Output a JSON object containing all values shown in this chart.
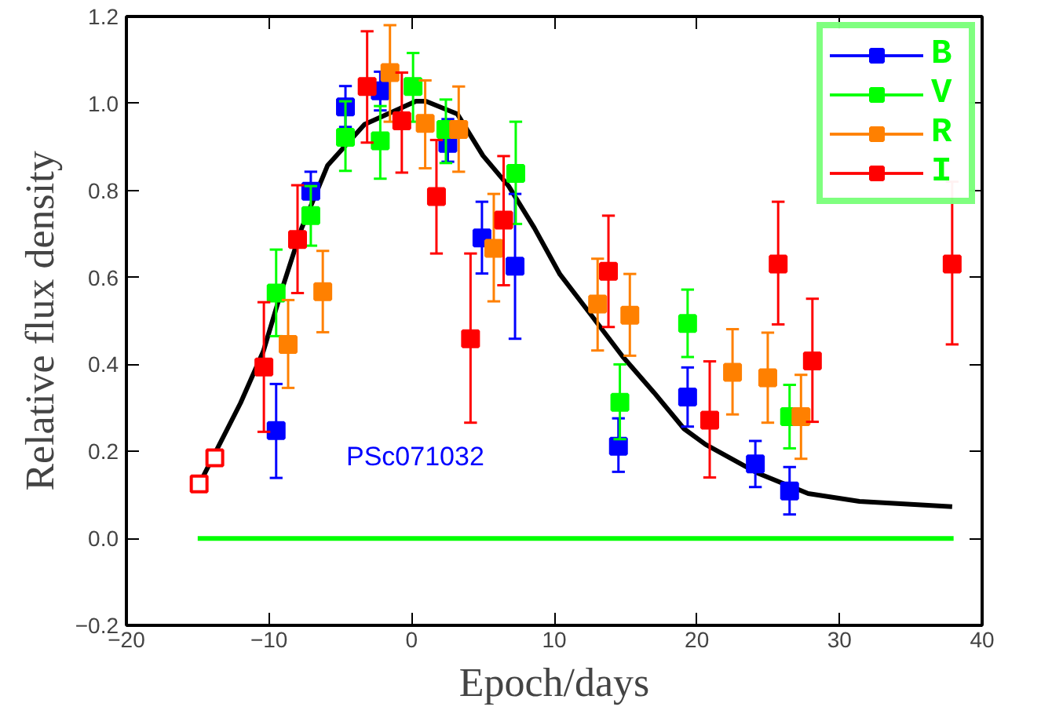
{
  "chart_data": {
    "type": "scatter",
    "xlabel": "Epoch/days",
    "ylabel": "Relative flux density",
    "annotations": [
      "PSc071032"
    ],
    "xlim": [
      -20,
      40
    ],
    "ylim": [
      -0.2,
      1.2
    ],
    "xticks": [
      {
        "value": -20,
        "label": "−20"
      },
      {
        "value": -10,
        "label": "−10"
      },
      0,
      10,
      20,
      30,
      40
    ],
    "yticks": [
      {
        "value": -0.2,
        "label": "−0.2"
      },
      {
        "value": 0,
        "label": "0.0"
      },
      {
        "value": 0.2,
        "label": "0.2"
      },
      {
        "value": 0.4,
        "label": "0.4"
      },
      {
        "value": 0.6,
        "label": "0.6"
      },
      {
        "value": 0.8,
        "label": "0.8"
      },
      {
        "value": 1.0,
        "label": "1.0"
      },
      {
        "value": 1.2,
        "label": "1.2"
      }
    ],
    "grid": false,
    "legend": "top right",
    "marker": "square",
    "series": [
      {
        "name": "B",
        "color": "#0000ff",
        "x": [
          -9.5,
          -7.07,
          -4.64,
          -2.2,
          2.54,
          4.93,
          7.25,
          14.5,
          19.35,
          24.1,
          26.5
        ],
        "values": [
          0.248,
          0.798,
          0.992,
          1.029,
          0.908,
          0.691,
          0.626,
          0.212,
          0.325,
          0.171,
          0.109
        ],
        "errors": [
          [
            0.139,
            0.355
          ],
          [
            0.798,
            0.843
          ],
          [
            0.946,
            1.04
          ],
          [
            0.984,
            1.073
          ],
          [
            0.866,
            0.964
          ],
          [
            0.609,
            0.774
          ],
          [
            0.459,
            0.792
          ],
          [
            0.153,
            0.276
          ],
          [
            0.257,
            0.393
          ],
          [
            0.118,
            0.224
          ],
          [
            0.055,
            0.164
          ]
        ]
      },
      {
        "name": "V",
        "color": "#00ff00",
        "x": [
          -9.5,
          -7.07,
          -4.64,
          -2.2,
          0.1,
          2.4,
          7.3,
          14.6,
          19.35,
          26.5
        ],
        "values": [
          0.564,
          0.742,
          0.922,
          0.914,
          1.039,
          0.94,
          0.839,
          0.313,
          0.494,
          0.28
        ],
        "errors": [
          [
            0.465,
            0.664
          ],
          [
            0.673,
            0.81
          ],
          [
            0.845,
            1.005
          ],
          [
            0.827,
            0.994
          ],
          [
            0.958,
            1.116
          ],
          [
            0.863,
            1.009
          ],
          [
            0.723,
            0.958
          ],
          [
            0.228,
            0.4
          ],
          [
            0.417,
            0.572
          ],
          [
            0.207,
            0.353
          ]
        ]
      },
      {
        "name": "R",
        "color": "#ff8000",
        "x": [
          -8.66,
          -6.23,
          -1.52,
          0.95,
          3.3,
          5.76,
          13.04,
          15.3,
          22.5,
          24.97,
          27.3
        ],
        "values": [
          0.446,
          0.567,
          1.071,
          0.954,
          0.94,
          0.667,
          0.539,
          0.513,
          0.382,
          0.369,
          0.28
        ],
        "errors": [
          [
            0.346,
            0.548
          ],
          [
            0.474,
            0.661
          ],
          [
            0.958,
            1.18
          ],
          [
            0.851,
            1.053
          ],
          [
            0.843,
            1.039
          ],
          [
            0.545,
            0.792
          ],
          [
            0.432,
            0.643
          ],
          [
            0.42,
            0.608
          ],
          [
            0.285,
            0.481
          ],
          [
            0.266,
            0.473
          ],
          [
            0.183,
            0.376
          ]
        ]
      },
      {
        "name": "I",
        "color": "#ff0000",
        "x": [
          -10.36,
          -8.0,
          -3.12,
          -0.69,
          1.74,
          4.13,
          6.45,
          13.8,
          20.9,
          25.7,
          28.1,
          37.9
        ],
        "values": [
          0.394,
          0.687,
          1.039,
          0.96,
          0.786,
          0.459,
          0.732,
          0.614,
          0.272,
          0.631,
          0.408,
          0.631
        ],
        "errors": [
          [
            0.245,
            0.543
          ],
          [
            0.564,
            0.812
          ],
          [
            0.91,
            1.166
          ],
          [
            0.841,
            1.071
          ],
          [
            0.655,
            0.916
          ],
          [
            0.266,
            0.655
          ],
          [
            0.582,
            0.879
          ],
          [
            0.486,
            0.742
          ],
          [
            0.14,
            0.407
          ],
          [
            0.492,
            0.774
          ],
          [
            0.268,
            0.551
          ],
          [
            0.446,
            0.82
          ]
        ]
      },
      {
        "color": "#ff0000",
        "x": [
          -14.9,
          -13.8
        ],
        "values": [
          0.125,
          0.185
        ]
      },
      {
        "type": "line",
        "color": "#000000",
        "x": [
          -14.9,
          -12.0,
          -10.4,
          -9.1,
          -7.7,
          -5.9,
          -3.3,
          0.3,
          1.0,
          3.2,
          5.0,
          6.8,
          8.6,
          10.4,
          12.6,
          14.8,
          17.0,
          19.1,
          20.6,
          24.2,
          27.8,
          31.4,
          37.9
        ],
        "values": [
          0.124,
          0.311,
          0.43,
          0.572,
          0.714,
          0.857,
          0.952,
          1.005,
          1.005,
          0.976,
          0.88,
          0.81,
          0.714,
          0.607,
          0.513,
          0.418,
          0.335,
          0.252,
          0.216,
          0.151,
          0.103,
          0.085,
          0.073
        ],
        "marker": "none"
      },
      {
        "type": "line",
        "color": "#00ff00",
        "x": [
          -15,
          38
        ],
        "values": [
          0,
          0
        ],
        "marker": "none"
      }
    ]
  }
}
